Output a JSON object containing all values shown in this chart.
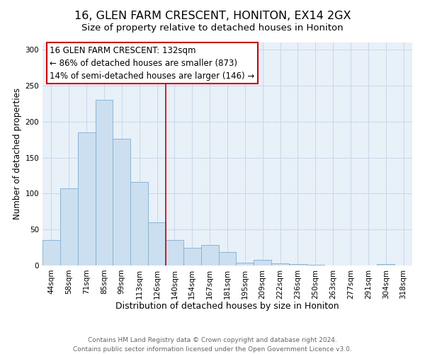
{
  "title": "16, GLEN FARM CRESCENT, HONITON, EX14 2GX",
  "subtitle": "Size of property relative to detached houses in Honiton",
  "xlabel": "Distribution of detached houses by size in Honiton",
  "ylabel": "Number of detached properties",
  "bar_labels": [
    "44sqm",
    "58sqm",
    "71sqm",
    "85sqm",
    "99sqm",
    "113sqm",
    "126sqm",
    "140sqm",
    "154sqm",
    "167sqm",
    "181sqm",
    "195sqm",
    "209sqm",
    "222sqm",
    "236sqm",
    "250sqm",
    "263sqm",
    "277sqm",
    "291sqm",
    "304sqm",
    "318sqm"
  ],
  "bar_values": [
    35,
    107,
    185,
    230,
    176,
    116,
    60,
    35,
    25,
    29,
    19,
    4,
    8,
    3,
    2,
    1,
    0,
    0,
    0,
    2,
    0
  ],
  "bar_color": "#ccdff0",
  "bar_edge_color": "#8ab4d4",
  "vline_x_index": 6,
  "vline_color": "#cc0000",
  "ylim": [
    0,
    310
  ],
  "yticks": [
    0,
    50,
    100,
    150,
    200,
    250,
    300
  ],
  "annotation_line1": "16 GLEN FARM CRESCENT: 132sqm",
  "annotation_line2": "← 86% of detached houses are smaller (873)",
  "annotation_line3": "14% of semi-detached houses are larger (146) →",
  "annotation_box_color": "#ffffff",
  "annotation_box_edge_color": "#cc0000",
  "grid_color": "#c8d8e8",
  "plot_bg_color": "#e8f0f8",
  "footer_line1": "Contains HM Land Registry data © Crown copyright and database right 2024.",
  "footer_line2": "Contains public sector information licensed under the Open Government Licence v3.0.",
  "title_fontsize": 11.5,
  "subtitle_fontsize": 9.5,
  "xlabel_fontsize": 9,
  "ylabel_fontsize": 8.5,
  "tick_fontsize": 7.5,
  "footer_fontsize": 6.5,
  "annotation_fontsize": 8.5
}
